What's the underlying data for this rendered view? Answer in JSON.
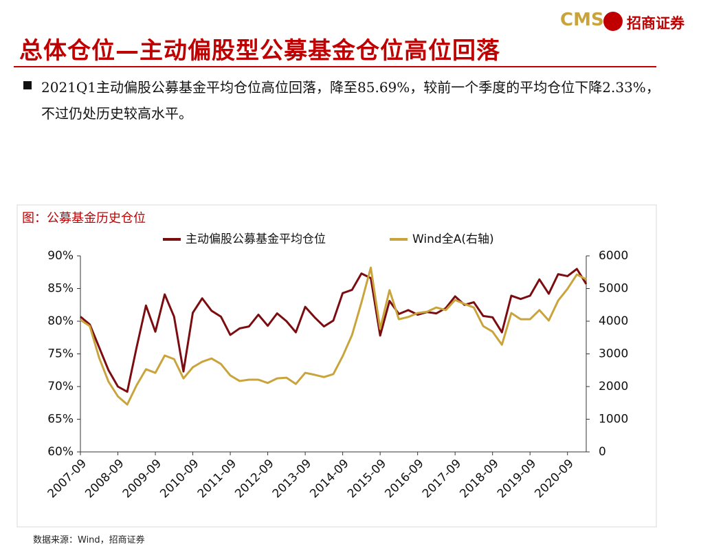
{
  "header": {
    "logo": "CMS",
    "brand": "招商证券",
    "title": "总体仓位—主动偏股型公募基金仓位高位回落"
  },
  "bullet": "2021Q1主动偏股公募基金平均仓位高位回落，降至85.69%，较前一个季度的平均仓位下降2.33%，不过仍处历史较高水平。",
  "source": "数据来源：Wind，招商证券",
  "chart_data": {
    "type": "line",
    "title": "图：公募基金历史仓位",
    "categories": [
      "2007-09",
      null,
      null,
      null,
      "2008-09",
      null,
      null,
      null,
      "2009-09",
      null,
      null,
      null,
      "2010-09",
      null,
      null,
      null,
      "2011-09",
      null,
      null,
      null,
      "2012-09",
      null,
      null,
      null,
      "2013-09",
      null,
      null,
      null,
      "2014-09",
      null,
      null,
      null,
      "2015-09",
      null,
      null,
      null,
      "2016-09",
      null,
      null,
      null,
      "2017-09",
      null,
      null,
      null,
      "2018-09",
      null,
      null,
      null,
      "2019-09",
      null,
      null,
      null,
      "2020-09",
      null,
      null
    ],
    "series": [
      {
        "name": "主动偏股公募基金平均仓位",
        "color": "#7b0c10",
        "values": [
          80.7,
          79.5,
          76,
          72.5,
          70,
          69.2,
          76,
          82.4,
          78.4,
          84.1,
          80.7,
          72.3,
          81.3,
          83.5,
          81.6,
          80.7,
          77.9,
          78.9,
          79.2,
          81,
          79.3,
          81.2,
          80,
          78.3,
          82.2,
          80.6,
          79.2,
          80.1,
          84.3,
          84.8,
          87.3,
          86.6,
          77.8,
          83.1,
          81.1,
          81.7,
          81,
          81.4,
          81.2,
          82,
          83.8,
          82.5,
          82.9,
          80.8,
          80.6,
          78.3,
          83.9,
          83.4,
          83.9,
          86.4,
          84.2,
          87.2,
          86.9,
          88,
          85.69
        ]
      },
      {
        "name": "Wind全A(右轴)",
        "color": "#c9a43c",
        "axis": "y2",
        "values": [
          4040,
          3850,
          2880,
          2150,
          1700,
          1450,
          2040,
          2530,
          2420,
          2950,
          2840,
          2250,
          2590,
          2760,
          2860,
          2690,
          2340,
          2170,
          2210,
          2210,
          2110,
          2250,
          2270,
          2080,
          2420,
          2360,
          2290,
          2380,
          2930,
          3580,
          4570,
          5640,
          3770,
          4950,
          4060,
          4130,
          4250,
          4290,
          4420,
          4340,
          4650,
          4530,
          4420,
          3850,
          3680,
          3280,
          4250,
          4060,
          4060,
          4340,
          4020,
          4630,
          4990,
          5430,
          5280
        ]
      }
    ],
    "ylim": [
      60,
      90
    ],
    "yticks": [
      {
        "value": 60,
        "label": "60%"
      },
      {
        "value": 65,
        "label": "65%"
      },
      {
        "value": 70,
        "label": "70%"
      },
      {
        "value": 75,
        "label": "75%"
      },
      {
        "value": 80,
        "label": "80%"
      },
      {
        "value": 85,
        "label": "85%"
      },
      {
        "value": 90,
        "label": "90%"
      }
    ],
    "y2lim": [
      0,
      6000
    ],
    "y2ticks": [
      0,
      1000,
      2000,
      3000,
      4000,
      5000,
      6000
    ],
    "grid": false,
    "legend": "top"
  }
}
